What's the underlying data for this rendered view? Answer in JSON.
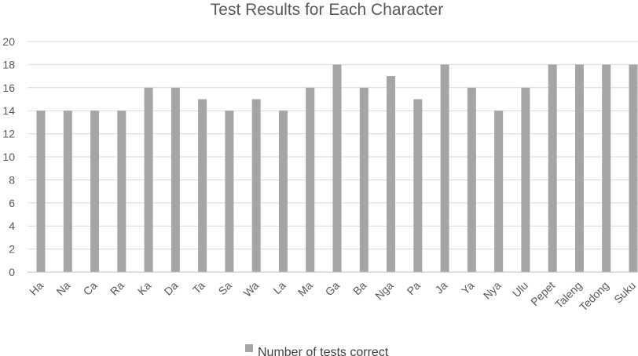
{
  "chart_data": {
    "type": "bar",
    "title": "Test Results for Each Character",
    "categories": [
      "Ha",
      "Na",
      "Ca",
      "Ra",
      "Ka",
      "Da",
      "Ta",
      "Sa",
      "Wa",
      "La",
      "Ma",
      "Ga",
      "Ba",
      "Nga",
      "Pa",
      "Ja",
      "Ya",
      "Nya",
      "Ulu",
      "Pepet",
      "Taleng",
      "Tedong",
      "Suku"
    ],
    "series": [
      {
        "name": "Number of tests correct",
        "values": [
          14,
          14,
          14,
          14,
          16,
          16,
          15,
          14,
          15,
          14,
          16,
          18,
          16,
          17,
          15,
          18,
          16,
          14,
          16,
          18,
          18,
          18,
          18
        ],
        "color": "#a5a5a5"
      }
    ],
    "ylim": [
      0,
      20
    ],
    "yticks": [
      0,
      2,
      4,
      6,
      8,
      10,
      12,
      14,
      16,
      18,
      20
    ],
    "grid": true,
    "legend_position": "bottom"
  }
}
